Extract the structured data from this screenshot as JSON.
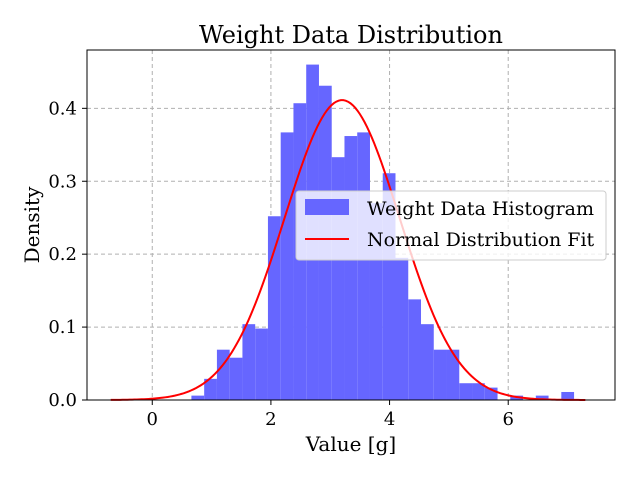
{
  "chart_data": {
    "type": "bar",
    "title": "Weight Data Distribution",
    "xlabel": "Value [g]",
    "ylabel": "Density",
    "xlim": [
      -1.1,
      7.8
    ],
    "ylim": [
      0,
      0.48
    ],
    "xticks": [
      0,
      2,
      4,
      6
    ],
    "yticks": [
      0.0,
      0.1,
      0.2,
      0.3,
      0.4
    ],
    "ytick_labels": [
      "0.0",
      "0.1",
      "0.2",
      "0.3",
      "0.4"
    ],
    "grid": true,
    "legend_position": "center-right",
    "histogram": {
      "name": "Weight Data Histogram",
      "color": "#6666ff",
      "bin_width": 0.215,
      "bins": [
        {
          "start": 0.66,
          "density": 0.006
        },
        {
          "start": 0.875,
          "density": 0.029
        },
        {
          "start": 1.09,
          "density": 0.069
        },
        {
          "start": 1.305,
          "density": 0.058
        },
        {
          "start": 1.52,
          "density": 0.104
        },
        {
          "start": 1.735,
          "density": 0.098
        },
        {
          "start": 1.95,
          "density": 0.252
        },
        {
          "start": 2.165,
          "density": 0.367
        },
        {
          "start": 2.38,
          "density": 0.407
        },
        {
          "start": 2.595,
          "density": 0.46
        },
        {
          "start": 2.81,
          "density": 0.431
        },
        {
          "start": 3.025,
          "density": 0.333
        },
        {
          "start": 3.24,
          "density": 0.362
        },
        {
          "start": 3.455,
          "density": 0.367
        },
        {
          "start": 3.67,
          "density": 0.27
        },
        {
          "start": 3.885,
          "density": 0.311
        },
        {
          "start": 4.1,
          "density": 0.195
        },
        {
          "start": 4.315,
          "density": 0.138
        },
        {
          "start": 4.53,
          "density": 0.104
        },
        {
          "start": 4.745,
          "density": 0.069
        },
        {
          "start": 4.96,
          "density": 0.069
        },
        {
          "start": 5.175,
          "density": 0.023
        },
        {
          "start": 5.39,
          "density": 0.023
        },
        {
          "start": 5.605,
          "density": 0.017
        },
        {
          "start": 5.82,
          "density": 0.0
        },
        {
          "start": 6.035,
          "density": 0.006
        },
        {
          "start": 6.25,
          "density": 0.0
        },
        {
          "start": 6.465,
          "density": 0.006
        },
        {
          "start": 6.68,
          "density": 0.0
        },
        {
          "start": 6.895,
          "density": 0.011
        }
      ]
    },
    "fit": {
      "name": "Normal Distribution Fit",
      "color": "#ff0000",
      "mean": 3.2,
      "std": 0.97,
      "x_range": [
        -0.7,
        7.3
      ]
    }
  }
}
